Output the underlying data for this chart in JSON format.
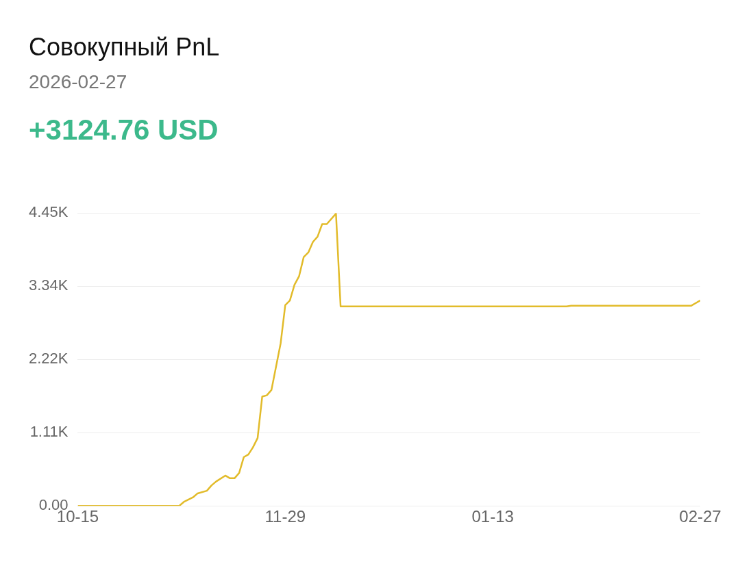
{
  "chart_data": {
    "type": "line",
    "title": "Совокупный PnL",
    "subtitle": "2026-02-27",
    "annotations": [
      "+3124.76 USD"
    ],
    "x": [
      "2025-10-15",
      "2025-11-06",
      "2025-11-07",
      "2025-11-09",
      "2025-11-10",
      "2025-11-12",
      "2025-11-13",
      "2025-11-14",
      "2025-11-16",
      "2025-11-17",
      "2025-11-18",
      "2025-11-19",
      "2025-11-20",
      "2025-11-21",
      "2025-11-22",
      "2025-11-23",
      "2025-11-24",
      "2025-11-25",
      "2025-11-26",
      "2025-11-28",
      "2025-11-29",
      "2025-11-30",
      "2025-12-01",
      "2025-12-02",
      "2025-12-03",
      "2025-12-04",
      "2025-12-05",
      "2025-12-06",
      "2025-12-07",
      "2025-12-08",
      "2025-12-10",
      "2025-12-11",
      "2026-01-29",
      "2026-01-30",
      "2026-02-25",
      "2026-02-27"
    ],
    "series": [
      {
        "color": "#e2bb2a",
        "values": [
          0,
          0,
          60,
          130,
          190,
          230,
          310,
          370,
          460,
          420,
          420,
          500,
          740,
          780,
          890,
          1030,
          1660,
          1680,
          1760,
          2470,
          3050,
          3120,
          3360,
          3490,
          3780,
          3850,
          4010,
          4090,
          4280,
          4280,
          4440,
          3030,
          3030,
          3040,
          3040,
          3120
        ]
      }
    ],
    "xlim": [
      "2025-10-15",
      "2026-02-27"
    ],
    "xticks": [
      {
        "value": "2025-10-15",
        "label": "10-15"
      },
      {
        "value": "2025-11-29",
        "label": "11-29"
      },
      {
        "value": "2026-01-13",
        "label": "01-13"
      },
      {
        "value": "2026-02-27",
        "label": "02-27"
      }
    ],
    "ylim": [
      0,
      4450
    ],
    "yticks": [
      {
        "value": 0,
        "label": "0.00"
      },
      {
        "value": 1112.5,
        "label": "1.11K"
      },
      {
        "value": 2225,
        "label": "2.22K"
      },
      {
        "value": 3337.5,
        "label": "3.34K"
      },
      {
        "value": 4450,
        "label": "4.45K"
      }
    ],
    "grid": "y",
    "legend": false,
    "marker": "none",
    "line_style": "solid"
  }
}
